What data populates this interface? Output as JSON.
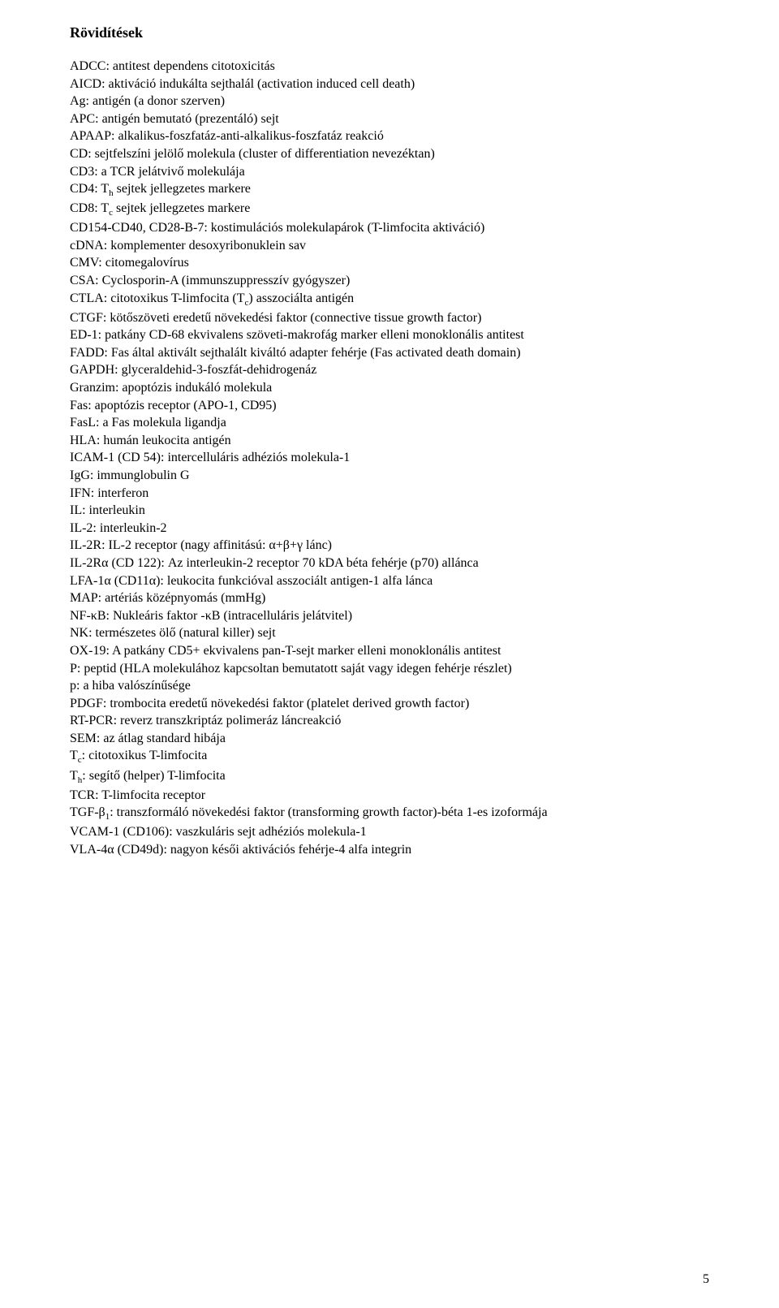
{
  "title": "Rövidítések",
  "entries": [
    [
      {
        "t": "ADCC: antitest dependens citotoxicitás"
      }
    ],
    [
      {
        "t": "AICD: aktiváció indukálta sejthalál (activation induced cell death)"
      }
    ],
    [
      {
        "t": "Ag: antigén (a donor szerven)"
      }
    ],
    [
      {
        "t": "APC: antigén bemutató (prezentáló) sejt"
      }
    ],
    [
      {
        "t": "APAAP: alkalikus-foszfatáz-anti-alkalikus-foszfatáz reakció"
      }
    ],
    [
      {
        "t": "CD: sejtfelszíni jelölő molekula (cluster of differentiation nevezéktan)"
      }
    ],
    [
      {
        "t": "CD3: a TCR jelátvivő molekulája"
      }
    ],
    [
      {
        "t": "CD4: T"
      },
      {
        "t": "h",
        "sub": true
      },
      {
        "t": " sejtek jellegzetes markere"
      }
    ],
    [
      {
        "t": "CD8: T"
      },
      {
        "t": "c",
        "sub": true
      },
      {
        "t": " sejtek jellegzetes markere"
      }
    ],
    [
      {
        "t": "CD154-CD40, CD28-B-7: kostimulációs molekulapárok (T-limfocita aktiváció)"
      }
    ],
    [
      {
        "t": "cDNA: komplementer desoxyribonuklein sav"
      }
    ],
    [
      {
        "t": "CMV: citomegalovírus"
      }
    ],
    [
      {
        "t": "CSA: Cyclosporin-A (immunszuppresszív gyógyszer)"
      }
    ],
    [
      {
        "t": "CTLA: citotoxikus T-limfocita (T"
      },
      {
        "t": "c",
        "sub": true
      },
      {
        "t": ") asszociálta antigén"
      }
    ],
    [
      {
        "t": "CTGF: kötőszöveti eredetű növekedési faktor (connective tissue growth factor)"
      }
    ],
    [
      {
        "t": "ED-1: patkány CD-68 ekvivalens szöveti-makrofág marker elleni monoklonális antitest"
      }
    ],
    [
      {
        "t": "FADD: Fas által aktivált sejthalált kiváltó adapter fehérje (Fas activated death domain)"
      }
    ],
    [
      {
        "t": "GAPDH: glyceraldehid-3-foszfát-dehidrogenáz"
      }
    ],
    [
      {
        "t": "Granzim: apoptózis indukáló molekula"
      }
    ],
    [
      {
        "t": "Fas: apoptózis receptor (APO-1, CD95)"
      }
    ],
    [
      {
        "t": "FasL: a Fas molekula ligandja"
      }
    ],
    [
      {
        "t": "HLA: humán leukocita antigén"
      }
    ],
    [
      {
        "t": "ICAM-1 (CD 54): intercelluláris adhéziós molekula-1"
      }
    ],
    [
      {
        "t": "IgG: immunglobulin G"
      }
    ],
    [
      {
        "t": "IFN: interferon"
      }
    ],
    [
      {
        "t": "IL: interleukin"
      }
    ],
    [
      {
        "t": "IL-2: interleukin-2"
      }
    ],
    [
      {
        "t": "IL-2R: IL-2 receptor (nagy affinitású: α+β+γ lánc)"
      }
    ],
    [
      {
        "t": "IL-2Rα (CD 122): Az interleukin-2 receptor 70 kDA béta fehérje (p70) allánca"
      }
    ],
    [
      {
        "t": "LFA-1α (CD11α): leukocita funkcióval asszociált antigen-1 alfa lánca"
      }
    ],
    [
      {
        "t": "MAP: artériás középnyomás (mmHg)"
      }
    ],
    [
      {
        "t": "NF-κB: Nukleáris faktor -κB (intracelluláris jelátvitel)"
      }
    ],
    [
      {
        "t": "NK: természetes ölő (natural killer) sejt"
      }
    ],
    [
      {
        "t": "OX-19: A patkány CD5+ ekvivalens pan-T-sejt marker elleni monoklonális antitest"
      }
    ],
    [
      {
        "t": "P: peptid (HLA molekulához kapcsoltan bemutatott saját vagy idegen fehérje részlet)"
      }
    ],
    [
      {
        "t": "p: a hiba valószínűsége"
      }
    ],
    [
      {
        "t": "PDGF: trombocita eredetű növekedési faktor (platelet derived growth factor)"
      }
    ],
    [
      {
        "t": "RT-PCR: reverz transzkriptáz polimeráz láncreakció"
      }
    ],
    [
      {
        "t": "SEM: az átlag standard hibája"
      }
    ],
    [
      {
        "t": "T"
      },
      {
        "t": "c",
        "sub": true
      },
      {
        "t": ": citotoxikus T-limfocita"
      }
    ],
    [
      {
        "t": "T"
      },
      {
        "t": "h",
        "sub": true
      },
      {
        "t": ": segítő (helper) T-limfocita"
      }
    ],
    [
      {
        "t": "TCR: T-limfocita receptor"
      }
    ],
    [
      {
        "t": "TGF-β"
      },
      {
        "t": "1",
        "sub": true
      },
      {
        "t": ": transzformáló növekedési faktor (transforming growth factor)-béta 1-es izoformája"
      }
    ],
    [
      {
        "t": "VCAM-1 (CD106): vaszkuláris sejt adhéziós molekula-1"
      }
    ],
    [
      {
        "t": "VLA-4α (CD49d): nagyon késői aktivációs fehérje-4 alfa integrin"
      }
    ]
  ],
  "pageNumber": "5"
}
